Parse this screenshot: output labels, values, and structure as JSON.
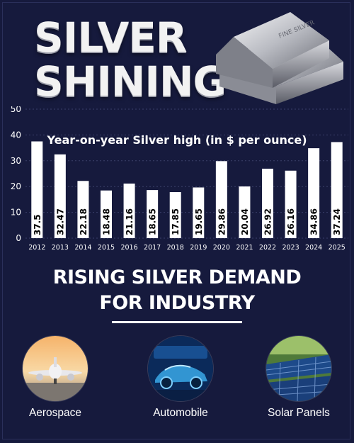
{
  "header": {
    "title_line1": "SILVER",
    "title_line2": "SHINING"
  },
  "chart_data": {
    "type": "bar",
    "title": "Year-on-year Silver high (in $ per ounce)",
    "categories": [
      "2012",
      "2013",
      "2014",
      "2015",
      "2016",
      "2017",
      "2018",
      "2019",
      "2020",
      "2021",
      "2022",
      "2023",
      "2024",
      "2025"
    ],
    "values": [
      37.5,
      32.47,
      22.18,
      18.48,
      21.16,
      18.65,
      17.85,
      19.65,
      29.86,
      20.04,
      26.92,
      26.16,
      34.86,
      37.24
    ],
    "value_labels": [
      "37.5",
      "32.47",
      "22.18",
      "18.48",
      "21.16",
      "18.65",
      "17.85",
      "19.65",
      "29.86",
      "20.04",
      "26.92",
      "26.16",
      "34.86",
      "37.24"
    ],
    "yticks": [
      "0",
      "10",
      "20",
      "30",
      "40",
      "50"
    ],
    "ylim": [
      0,
      50
    ],
    "grid": true,
    "bar_color": "#ffffff",
    "label_color": "#000000"
  },
  "demand": {
    "line1": "RISING SILVER DEMAND",
    "line2": "FOR INDUSTRY"
  },
  "industries": [
    {
      "label": "Aerospace",
      "icon": "airplane-photo"
    },
    {
      "label": "Automobile",
      "icon": "car-photo"
    },
    {
      "label": "Solar Panels",
      "icon": "solar-panel-photo"
    }
  ],
  "colors": {
    "background": "#161a3d",
    "text": "#ffffff"
  }
}
